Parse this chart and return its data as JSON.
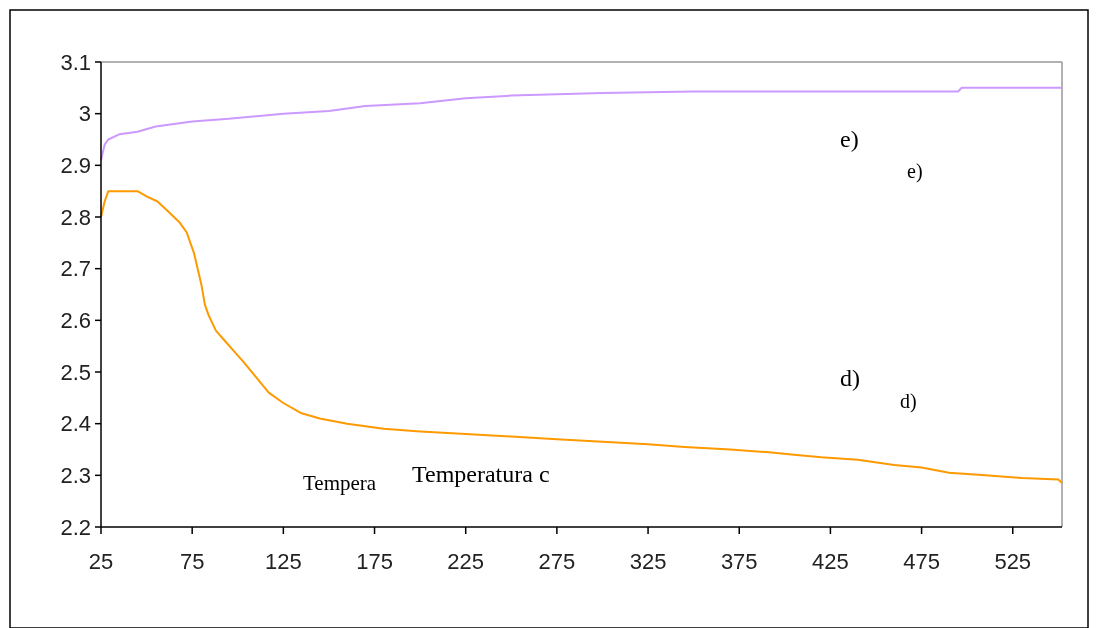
{
  "chart_data": {
    "type": "line",
    "xlim": [
      25,
      552
    ],
    "xticks": [
      25,
      75,
      125,
      175,
      225,
      275,
      325,
      375,
      425,
      475,
      525
    ],
    "ylim": [
      2.2,
      3.1
    ],
    "yticks": [
      2.2,
      2.3,
      2.4,
      2.5,
      2.6,
      2.7,
      2.8,
      2.9,
      {
        "value": 3,
        "label": "3"
      },
      3.1
    ],
    "grid": false,
    "marker": "none",
    "series": [
      {
        "color": "#cc99ff",
        "x": [
          25,
          27,
          29,
          35,
          45,
          55,
          75,
          95,
          125,
          150,
          170,
          200,
          225,
          250,
          300,
          350,
          400,
          450,
          495,
          497,
          552
        ],
        "values": [
          2.91,
          2.94,
          2.95,
          2.96,
          2.965,
          2.975,
          2.985,
          2.99,
          3.0,
          3.005,
          3.015,
          3.02,
          3.03,
          3.035,
          3.04,
          3.043,
          3.043,
          3.043,
          3.043,
          3.05,
          3.05
        ]
      },
      {
        "color": "#ff9900",
        "x": [
          25,
          27,
          29,
          45,
          50,
          56,
          62,
          68,
          72,
          76,
          80,
          82,
          84,
          88,
          93,
          98,
          103,
          110,
          117,
          125,
          135,
          145,
          160,
          180,
          200,
          225,
          250,
          275,
          300,
          325,
          345,
          370,
          390,
          405,
          420,
          440,
          460,
          475,
          490,
          510,
          530,
          550,
          552
        ],
        "values": [
          2.8,
          2.83,
          2.85,
          2.85,
          2.84,
          2.83,
          2.81,
          2.79,
          2.77,
          2.73,
          2.67,
          2.63,
          2.61,
          2.58,
          2.56,
          2.54,
          2.52,
          2.49,
          2.46,
          2.44,
          2.42,
          2.41,
          2.4,
          2.39,
          2.385,
          2.38,
          2.375,
          2.37,
          2.365,
          2.36,
          2.355,
          2.35,
          2.345,
          2.34,
          2.335,
          2.33,
          2.32,
          2.315,
          2.305,
          2.3,
          2.295,
          2.292,
          2.285
        ]
      }
    ],
    "annotations": [
      "e)",
      "e)",
      "d)",
      "d)",
      "Tempera",
      "Temperatura c"
    ]
  }
}
